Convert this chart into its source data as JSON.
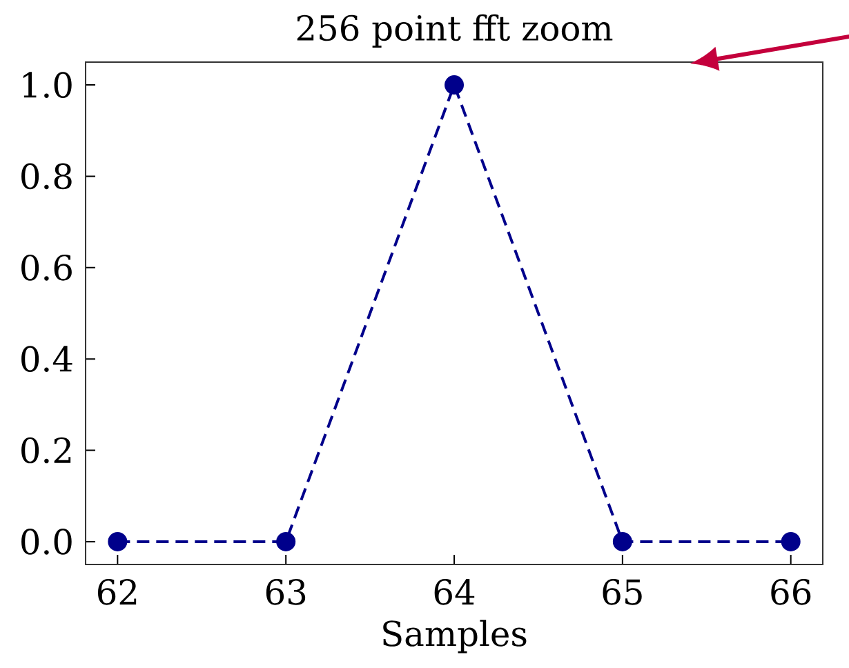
{
  "chart_data": {
    "type": "line",
    "title": "256 point fft zoom",
    "xlabel": "Samples",
    "x": [
      62,
      63,
      64,
      65,
      66
    ],
    "series": [
      {
        "color": "#00008b",
        "values": [
          0,
          0,
          1,
          0,
          0
        ]
      }
    ],
    "marker": "circle",
    "line_style": "dashed",
    "xlim": [
      61.81,
      66.19
    ],
    "ylim": [
      -0.05,
      1.05
    ],
    "xticks": [
      62,
      63,
      64,
      65,
      66
    ],
    "yticks": [
      {
        "value": 0,
        "label": "0.0"
      },
      {
        "value": 0.2,
        "label": "0.2"
      },
      {
        "value": 0.4,
        "label": "0.4"
      },
      {
        "value": 0.6,
        "label": "0.6"
      },
      {
        "value": 0.8,
        "label": "0.8"
      },
      {
        "value": 1,
        "label": "1.0"
      }
    ]
  }
}
